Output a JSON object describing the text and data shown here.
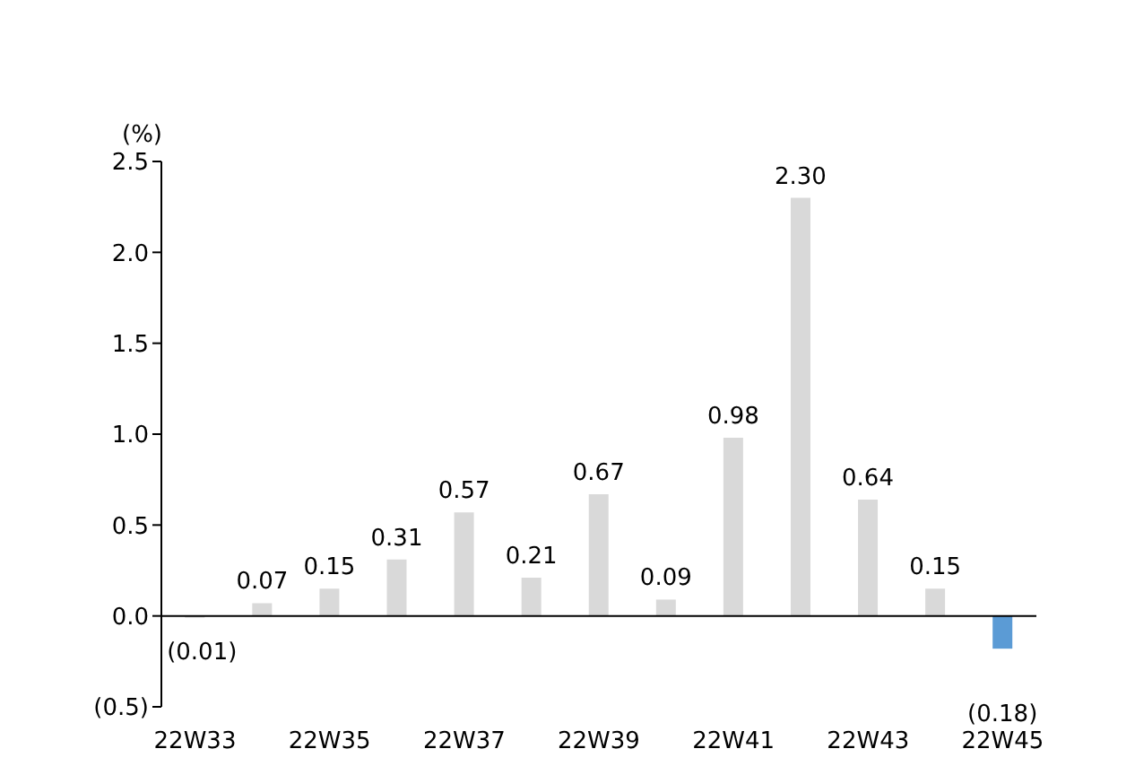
{
  "chart_data": {
    "type": "bar",
    "ylabel": "(%)",
    "categories": [
      "22W33",
      null,
      "22W35",
      null,
      "22W37",
      null,
      "22W39",
      null,
      "22W41",
      null,
      "22W43",
      null,
      "22W45"
    ],
    "values": [
      -0.01,
      0.07,
      0.15,
      0.31,
      0.57,
      0.21,
      0.67,
      0.09,
      0.98,
      2.3,
      0.64,
      0.15,
      -0.18
    ],
    "colors": [
      "#d9d9d9",
      "#d9d9d9",
      "#d9d9d9",
      "#d9d9d9",
      "#d9d9d9",
      "#d9d9d9",
      "#d9d9d9",
      "#d9d9d9",
      "#d9d9d9",
      "#d9d9d9",
      "#d9d9d9",
      "#d9d9d9",
      "#5b9bd5"
    ],
    "value_labels": [
      "(0.01)",
      "0.07",
      "0.15",
      "0.31",
      "0.57",
      "0.21",
      "0.67",
      "0.09",
      "0.98",
      "2.30",
      "0.64",
      "0.15",
      "(0.18)"
    ],
    "ylim": [
      -0.5,
      2.5
    ],
    "yticks": [
      {
        "value": -0.5,
        "label": "(0.5)"
      },
      {
        "value": 0,
        "label": "0.0"
      },
      0.5,
      {
        "value": 1,
        "label": "1.0"
      },
      1.5,
      {
        "value": 2,
        "label": "2.0"
      },
      2.5
    ]
  }
}
